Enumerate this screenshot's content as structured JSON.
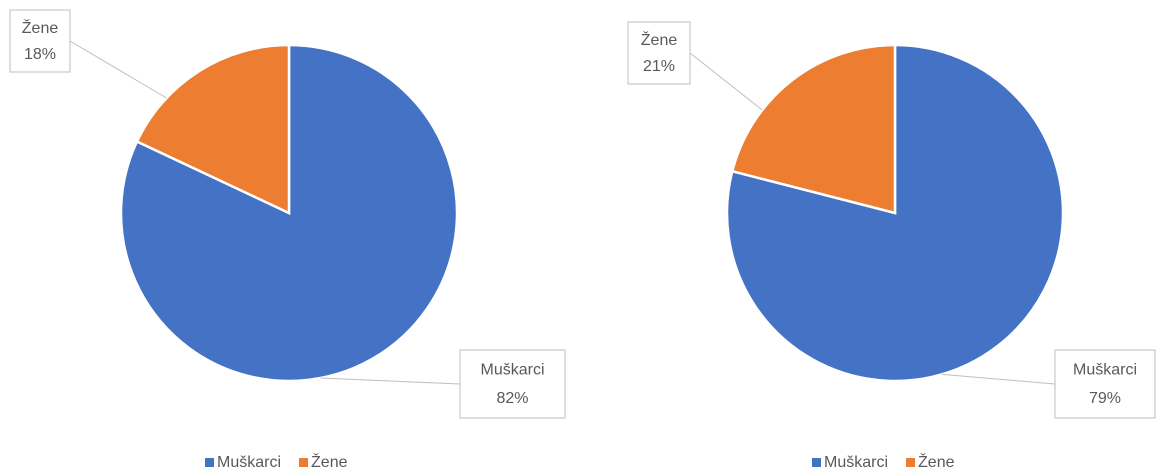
{
  "chart_data": [
    {
      "type": "pie",
      "categories": [
        "Muškarci",
        "Žene"
      ],
      "values": [
        82,
        18
      ],
      "value_labels": [
        "82%",
        "18%"
      ],
      "colors": [
        "#4472c4",
        "#ed7d31"
      ]
    },
    {
      "type": "pie",
      "categories": [
        "Muškarci",
        "Žene"
      ],
      "values": [
        79,
        21
      ],
      "value_labels": [
        "79%",
        "21%"
      ],
      "colors": [
        "#4472c4",
        "#ed7d31"
      ]
    }
  ]
}
